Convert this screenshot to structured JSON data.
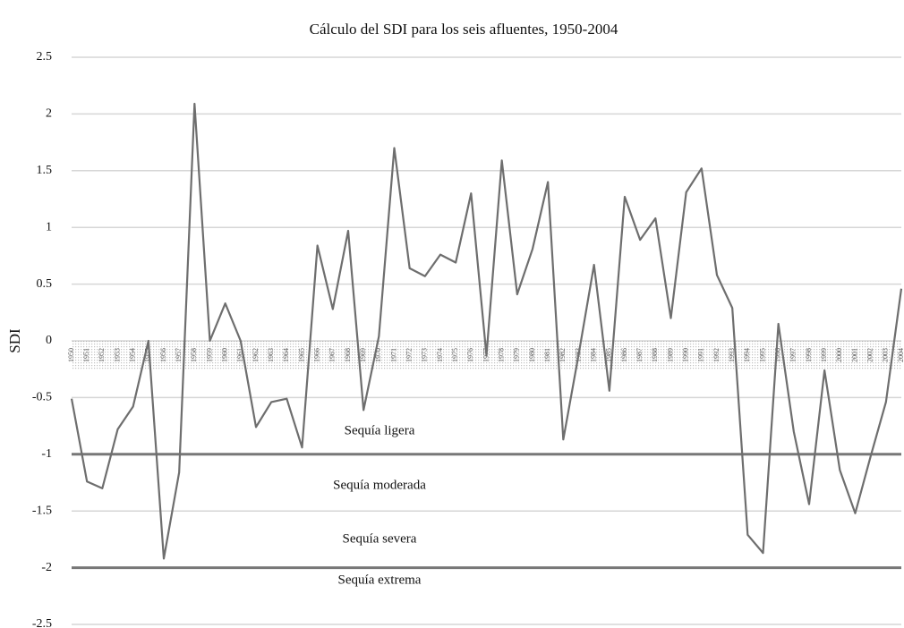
{
  "chart_data": {
    "type": "line",
    "title": "Cálculo del SDI para los seis afluentes, 1950-2004",
    "y_label": "SDI",
    "categories": [
      "1950",
      "1951",
      "1952",
      "1953",
      "1954",
      "1955",
      "1956",
      "1957",
      "1958",
      "1959",
      "1960",
      "1961",
      "1962",
      "1963",
      "1964",
      "1965",
      "1966",
      "1967",
      "1968",
      "1969",
      "1970",
      "1971",
      "1972",
      "1973",
      "1974",
      "1975",
      "1976",
      "1977",
      "1978",
      "1979",
      "1980",
      "1981",
      "1982",
      "1983",
      "1984",
      "1985",
      "1986",
      "1987",
      "1988",
      "1989",
      "1990",
      "1991",
      "1992",
      "1993",
      "1994",
      "1995",
      "1996",
      "1997",
      "1998",
      "1999",
      "2000",
      "2001",
      "2002",
      "2003",
      "2004"
    ],
    "series": [
      {
        "name": "SDI",
        "color": "#6e6e6e",
        "values": [
          -0.51,
          -1.24,
          -1.3,
          -0.78,
          -0.58,
          0,
          -1.92,
          -1.16,
          2.09,
          0,
          0.33,
          0,
          -0.76,
          -0.54,
          -0.51,
          -0.94,
          0.84,
          0.28,
          0.97,
          -0.61,
          0.04,
          1.7,
          0.64,
          0.57,
          0.76,
          0.69,
          1.3,
          -0.13,
          1.59,
          0.41,
          0.81,
          1.4,
          -0.87,
          -0.12,
          0.67,
          -0.44,
          1.27,
          0.89,
          1.08,
          0.2,
          1.31,
          1.52,
          0.58,
          0.29,
          -1.71,
          -1.87,
          0.15,
          -0.8,
          -1.44,
          -0.26,
          -1.14,
          -1.52,
          -1.02,
          -0.54,
          0.46
        ]
      }
    ],
    "ylim": [
      -2.5,
      2.5
    ],
    "yticks": [
      -2.5,
      -2,
      -1.5,
      -1,
      -0.5,
      0,
      0.5,
      1,
      1.5,
      2,
      2.5
    ],
    "grid": true,
    "thresholds": [
      -1,
      -2
    ],
    "annotations": [
      "Sequía ligera",
      "Sequía moderada",
      "Sequía severa",
      "Sequía extrema"
    ]
  }
}
